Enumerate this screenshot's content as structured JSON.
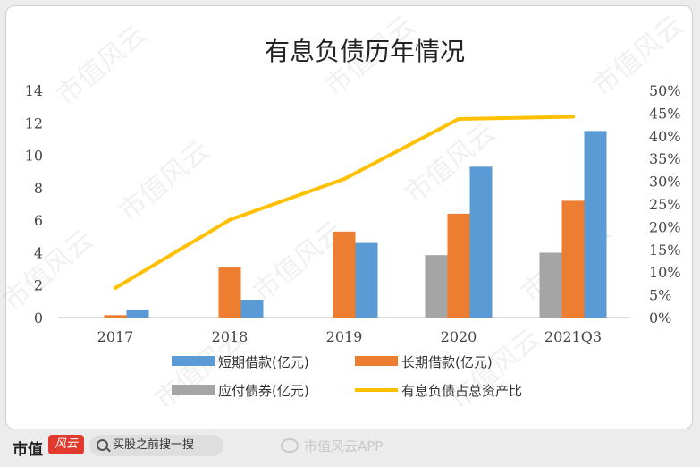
{
  "chart_data": {
    "type": "bar",
    "title": "有息负债历年情况",
    "categories": [
      "2017",
      "2018",
      "2019",
      "2020",
      "2021Q3"
    ],
    "y_left": {
      "min": 0,
      "max": 14,
      "step": 2
    },
    "y_right": {
      "min": 0,
      "max": 50,
      "step": 5,
      "unit": "%"
    },
    "series": [
      {
        "name": "短期借款(亿元)",
        "type": "bar",
        "axis": "left",
        "color": "#5b9bd5",
        "values": [
          0.5,
          1.1,
          4.6,
          9.3,
          11.5
        ]
      },
      {
        "name": "长期借款(亿元)",
        "type": "bar",
        "axis": "left",
        "color": "#ed7d31",
        "values": [
          0.15,
          3.1,
          5.3,
          6.4,
          7.2
        ]
      },
      {
        "name": "应付债券(亿元)",
        "type": "bar",
        "axis": "left",
        "color": "#a5a5a5",
        "values": [
          null,
          null,
          null,
          3.85,
          4.0
        ]
      },
      {
        "name": "有息负债占总资产比",
        "type": "line",
        "axis": "right",
        "color": "#ffc000",
        "values": [
          6.5,
          21.5,
          30.5,
          43.7,
          44.2
        ]
      }
    ],
    "legend_placement": "bottom",
    "gridlines": false
  },
  "watermark": "市值风云",
  "footer": {
    "logo_text": "市值",
    "logo_badge": "风云",
    "search_text": "买股之前搜一搜",
    "weibo_text": "市值风云APP"
  },
  "colors": {
    "short_term": "#5b9bd5",
    "long_term": "#ed7d31",
    "bonds": "#a5a5a5",
    "ratio_line": "#ffc000"
  }
}
